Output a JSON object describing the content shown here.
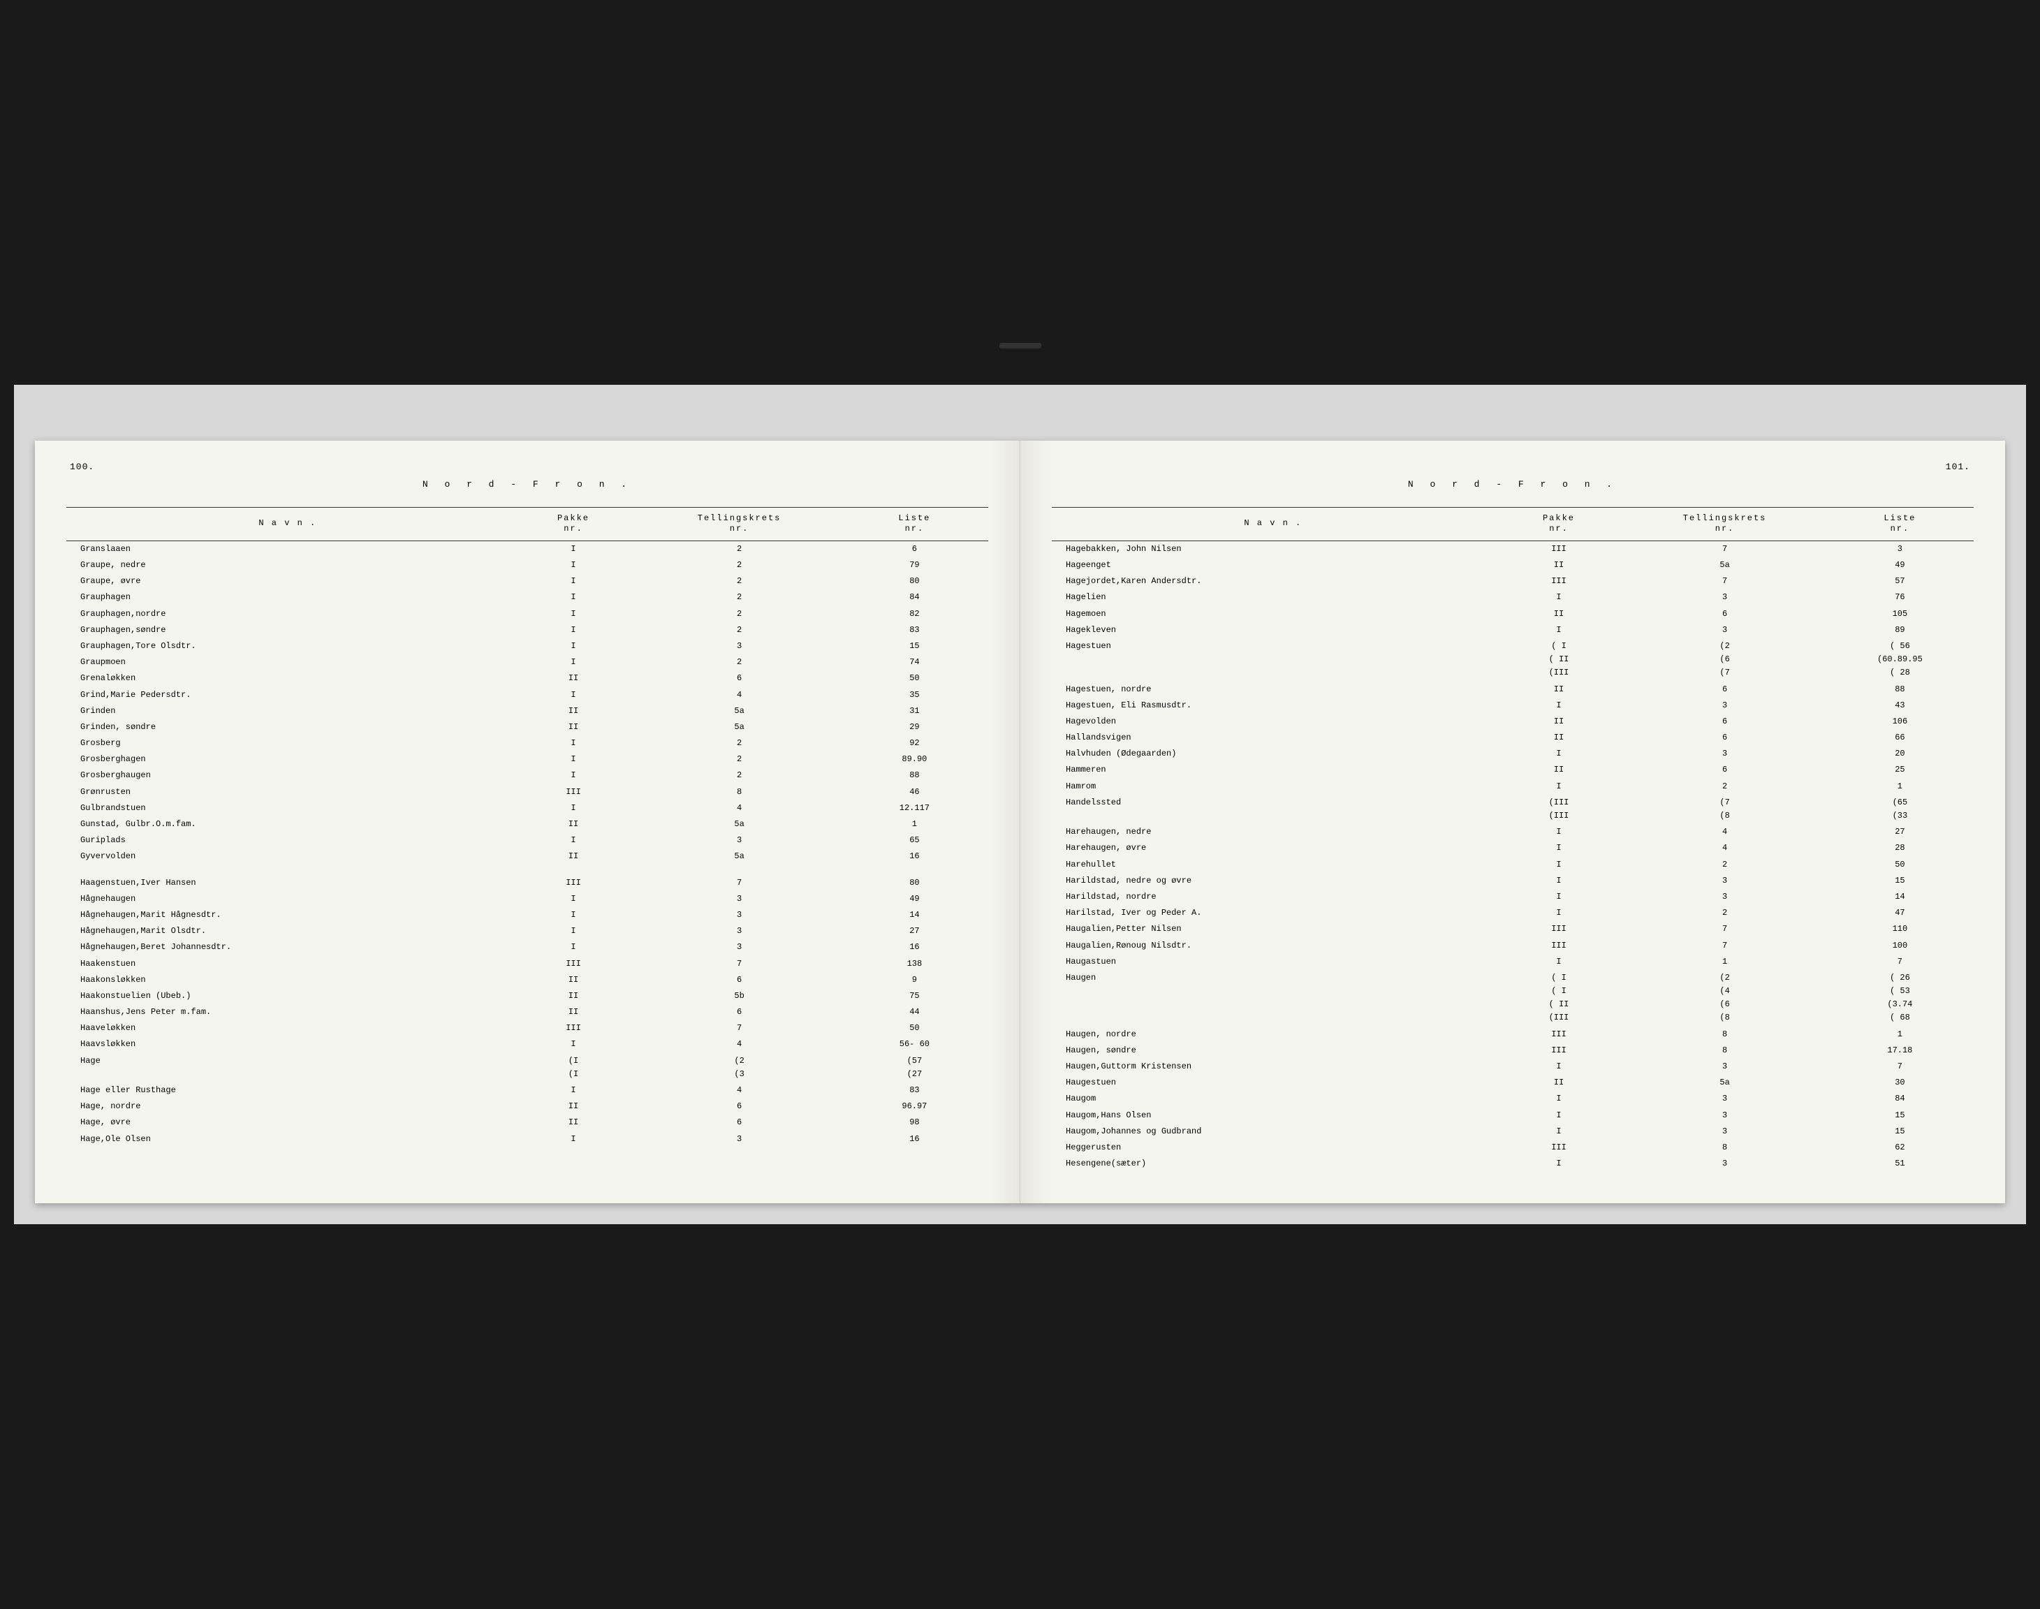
{
  "colors": {
    "scan_bg": "#d8d8d8",
    "page_bg": "#f5f5f0",
    "text": "#222222",
    "rule": "#333333",
    "frame": "#1a1a1a"
  },
  "typography": {
    "font_family": "Courier New, monospace",
    "body_size_pt": 12,
    "header_letter_spacing": 8
  },
  "left_page": {
    "page_number": "100.",
    "region": "N o r d - F r o n .",
    "columns": [
      "N a v n .",
      "Pakke\nnr.",
      "Tellingskrets\nnr.",
      "Liste\nnr."
    ],
    "rows": [
      [
        "Granslaaen",
        "I",
        "2",
        "6"
      ],
      [
        "Graupe, nedre",
        "I",
        "2",
        "79"
      ],
      [
        "Graupe, øvre",
        "I",
        "2",
        "80"
      ],
      [
        "Grauphagen",
        "I",
        "2",
        "84"
      ],
      [
        "Grauphagen,nordre",
        "I",
        "2",
        "82"
      ],
      [
        "Grauphagen,søndre",
        "I",
        "2",
        "83"
      ],
      [
        "Grauphagen,Tore Olsdtr.",
        "I",
        "3",
        "15"
      ],
      [
        "Graupmoen",
        "I",
        "2",
        "74"
      ],
      [
        "Grenaløkken",
        "II",
        "6",
        "50"
      ],
      [
        "Grind,Marie Pedersdtr.",
        "I",
        "4",
        "35"
      ],
      [
        "Grinden",
        "II",
        "5a",
        "31"
      ],
      [
        "Grinden, søndre",
        "II",
        "5a",
        "29"
      ],
      [
        "Grosberg",
        "I",
        "2",
        "92"
      ],
      [
        "Grosberghagen",
        "I",
        "2",
        "89.90"
      ],
      [
        "Grosberghaugen",
        "I",
        "2",
        "88"
      ],
      [
        "Grønrusten",
        "III",
        "8",
        "46"
      ],
      [
        "Gulbrandstuen",
        "I",
        "4",
        "12.117"
      ],
      [
        "Gunstad, Gulbr.O.m.fam.",
        "II",
        "5a",
        "1"
      ],
      [
        "Guriplads",
        "I",
        "3",
        "65"
      ],
      [
        "Gyvervolden",
        "II",
        "5a",
        "16"
      ],
      [
        "__SPACER__",
        "",
        "",
        ""
      ],
      [
        "Haagenstuen,Iver Hansen",
        "III",
        "7",
        "80"
      ],
      [
        "Hågnehaugen",
        "I",
        "3",
        "49"
      ],
      [
        "Hågnehaugen,Marit Hågnesdtr.",
        "I",
        "3",
        "14"
      ],
      [
        "Hågnehaugen,Marit Olsdtr.",
        "I",
        "3",
        "27"
      ],
      [
        "Hågnehaugen,Beret Johannesdtr.",
        "I",
        "3",
        "16"
      ],
      [
        "Haakenstuen",
        "III",
        "7",
        "138"
      ],
      [
        "Haakonsløkken",
        "II",
        "6",
        "9"
      ],
      [
        "Haakonstuelien (Ubeb.)",
        "II",
        "5b",
        "75"
      ],
      [
        "Haanshus,Jens Peter m.fam.",
        "II",
        "6",
        "44"
      ],
      [
        "Haaveløkken",
        "III",
        "7",
        "50"
      ],
      [
        "Haavsløkken",
        "I",
        "4",
        "56- 60"
      ],
      [
        "Hage",
        "(I\n(I",
        "(2\n(3",
        "(57\n(27"
      ],
      [
        "Hage eller Rusthage",
        "I",
        "4",
        "83"
      ],
      [
        "Hage, nordre",
        "II",
        "6",
        "96.97"
      ],
      [
        "Hage, øvre",
        "II",
        "6",
        "98"
      ],
      [
        "Hage,Ole Olsen",
        "I",
        "3",
        "16"
      ]
    ]
  },
  "right_page": {
    "page_number": "101.",
    "region": "N o r d - F r o n .",
    "columns": [
      "N a v n .",
      "Pakke\nnr.",
      "Tellingskrets\nnr.",
      "Liste\nnr."
    ],
    "rows": [
      [
        "Hagebakken, John Nilsen",
        "III",
        "7",
        "3"
      ],
      [
        "Hageenget",
        "II",
        "5a",
        "49"
      ],
      [
        "Hagejordet,Karen Andersdtr.",
        "III",
        "7",
        "57"
      ],
      [
        "Hagelien",
        "I",
        "3",
        "76"
      ],
      [
        "Hagemoen",
        "II",
        "6",
        "105"
      ],
      [
        "Hagekleven",
        "I",
        "3",
        "89"
      ],
      [
        "Hagestuen",
        "( I\n( II\n(III",
        "(2\n(6\n(7",
        "(    56\n(60.89.95\n(    28"
      ],
      [
        "Hagestuen, nordre",
        "II",
        "6",
        "88"
      ],
      [
        "Hagestuen, Eli Rasmusdtr.",
        "I",
        "3",
        "43"
      ],
      [
        "Hagevolden",
        "II",
        "6",
        "106"
      ],
      [
        "Hallandsvigen",
        "II",
        "6",
        "66"
      ],
      [
        "Halvhuden (Ødegaarden)",
        "I",
        "3",
        "20"
      ],
      [
        "Hammeren",
        "II",
        "6",
        "25"
      ],
      [
        "Hamrom",
        "I",
        "2",
        "1"
      ],
      [
        "Handelssted",
        "(III\n(III",
        "(7\n(8",
        "(65\n(33"
      ],
      [
        "Harehaugen, nedre",
        "I",
        "4",
        "27"
      ],
      [
        "Harehaugen, øvre",
        "I",
        "4",
        "28"
      ],
      [
        "Harehullet",
        "I",
        "2",
        "50"
      ],
      [
        "Harildstad, nedre og øvre",
        "I",
        "3",
        "15"
      ],
      [
        "Harildstad, nordre",
        "I",
        "3",
        "14"
      ],
      [
        "Harilstad, Iver og Peder A.",
        "I",
        "2",
        "47"
      ],
      [
        "Haugalien,Petter Nilsen",
        "III",
        "7",
        "110"
      ],
      [
        "Haugalien,Rønoug Nilsdtr.",
        "III",
        "7",
        "100"
      ],
      [
        "Haugastuen",
        "I",
        "1",
        "7"
      ],
      [
        "Haugen",
        "( I\n( I\n( II\n(III",
        "(2\n(4\n(6\n(8",
        "( 26\n( 53\n(3.74\n( 68"
      ],
      [
        "Haugen, nordre",
        "III",
        "8",
        "1"
      ],
      [
        "Haugen, søndre",
        "III",
        "8",
        "17.18"
      ],
      [
        "Haugen,Guttorm Kristensen",
        "I",
        "3",
        "7"
      ],
      [
        "Haugestuen",
        "II",
        "5a",
        "30"
      ],
      [
        "Haugom",
        "I",
        "3",
        "84"
      ],
      [
        "Haugom,Hans Olsen",
        "I",
        "3",
        "15"
      ],
      [
        "Haugom,Johannes og Gudbrand",
        "I",
        "3",
        "15"
      ],
      [
        "Heggerusten",
        "III",
        "8",
        "62"
      ],
      [
        "Hesengene(sæter)",
        "I",
        "3",
        "51"
      ]
    ]
  }
}
